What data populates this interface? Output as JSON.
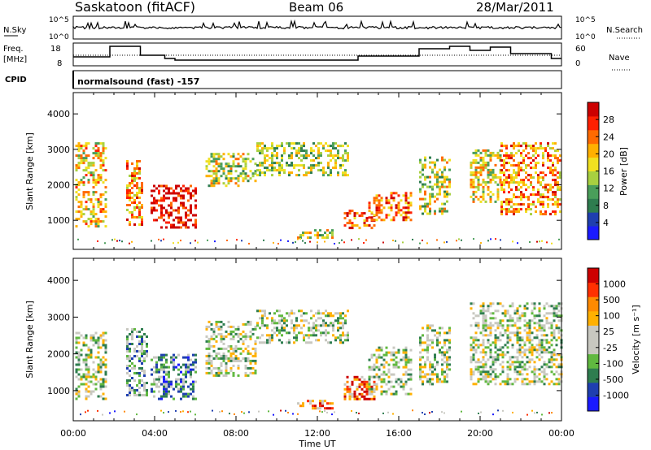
{
  "header": {
    "station": "Saskatoon (fitACF)",
    "beam": "Beam 06",
    "date": "28/Mar/2011"
  },
  "status_panels": {
    "nsky_label": "N.Sky",
    "nsky_ticks": [
      "10^5",
      "10^0"
    ],
    "nsearch_label": "N.Search",
    "nsearch_ticks": [
      "10^5",
      "10^0"
    ],
    "freq_label": "Freq.",
    "freq_unit": "[MHz]",
    "freq_ticks": [
      "18",
      "8"
    ],
    "nave_label": "Nave",
    "nave_ticks": [
      "60",
      "0"
    ],
    "cpid_label": "CPID",
    "cpid_value": "normalsound (fast) -157"
  },
  "colors": {
    "power_scale": [
      "#1a1aff",
      "#1f3fb0",
      "#2e7d4f",
      "#4a9e5a",
      "#a8d040",
      "#f0e020",
      "#ffb000",
      "#ff6a00",
      "#ff2000",
      "#cc0000"
    ],
    "velocity_scale": [
      "#1a1aff",
      "#1f3fb0",
      "#2e7d4f",
      "#60b840",
      "#c8c8c0",
      "#c8c8c0",
      "#ffb000",
      "#ff8a00",
      "#ff3000",
      "#cc0000"
    ]
  },
  "chart_data": [
    {
      "type": "heatmap",
      "title": "Power",
      "xlabel": "Time UT",
      "ylabel": "Slant Range [km]",
      "x_tick_labels": [
        "00:00",
        "04:00",
        "08:00",
        "12:00",
        "16:00",
        "20:00",
        "00:00"
      ],
      "xlim_hours": [
        0,
        24
      ],
      "ylim": [
        180,
        4600
      ],
      "y_ticks": [
        "4000",
        "3000",
        "2000",
        "1000"
      ],
      "colorbar_label": "Power [dB]",
      "colorbar_ticks": [
        "28",
        "24",
        "20",
        "16",
        "12",
        "8",
        "4"
      ],
      "scatter_regions_range_km": [
        {
          "t": [
            0.1,
            1.6
          ],
          "r": [
            800,
            3200
          ],
          "level": 0.6
        },
        {
          "t": [
            2.6,
            3.4
          ],
          "r": [
            900,
            2700
          ],
          "level": 0.7
        },
        {
          "t": [
            3.8,
            6.0
          ],
          "r": [
            800,
            2000
          ],
          "level": 0.95
        },
        {
          "t": [
            6.5,
            9.0
          ],
          "r": [
            2000,
            2900
          ],
          "level": 0.5
        },
        {
          "t": [
            9.0,
            13.5
          ],
          "r": [
            2300,
            3200
          ],
          "level": 0.45
        },
        {
          "t": [
            13.3,
            14.8
          ],
          "r": [
            800,
            1300
          ],
          "level": 0.8
        },
        {
          "t": [
            14.5,
            16.6
          ],
          "r": [
            1000,
            1800
          ],
          "level": 0.75
        },
        {
          "t": [
            11.0,
            12.8
          ],
          "r": [
            500,
            750
          ],
          "level": 0.5
        },
        {
          "t": [
            17.0,
            18.5
          ],
          "r": [
            1200,
            2800
          ],
          "level": 0.5
        },
        {
          "t": [
            19.5,
            21.0
          ],
          "r": [
            1500,
            3000
          ],
          "level": 0.55
        },
        {
          "t": [
            21.0,
            24.0
          ],
          "r": [
            1200,
            3200
          ],
          "level": 0.7
        }
      ]
    },
    {
      "type": "heatmap",
      "title": "Velocity",
      "xlabel": "Time UT",
      "ylabel": "Slant Range [km]",
      "x_tick_labels": [
        "00:00",
        "04:00",
        "08:00",
        "12:00",
        "16:00",
        "20:00",
        "00:00"
      ],
      "xlim_hours": [
        0,
        24
      ],
      "ylim": [
        180,
        4600
      ],
      "y_ticks": [
        "4000",
        "3000",
        "2000",
        "1000"
      ],
      "colorbar_label": "Velocity [m s⁻¹]",
      "colorbar_ticks": [
        "1000",
        "500",
        "100",
        "25",
        "-25",
        "-100",
        "-500",
        "-1000"
      ],
      "scatter_regions_range_km": [
        {
          "t": [
            0.1,
            1.6
          ],
          "r": [
            800,
            2600
          ],
          "level": 0.45
        },
        {
          "t": [
            2.6,
            3.6
          ],
          "r": [
            900,
            2700
          ],
          "level": 0.35
        },
        {
          "t": [
            3.8,
            6.0
          ],
          "r": [
            800,
            2000
          ],
          "level": 0.3
        },
        {
          "t": [
            6.5,
            9.0
          ],
          "r": [
            1400,
            2900
          ],
          "level": 0.45
        },
        {
          "t": [
            9.0,
            13.5
          ],
          "r": [
            2300,
            3200
          ],
          "level": 0.45
        },
        {
          "t": [
            13.3,
            14.8
          ],
          "r": [
            800,
            1400
          ],
          "level": 0.8
        },
        {
          "t": [
            11.0,
            12.8
          ],
          "r": [
            500,
            750
          ],
          "level": 0.75
        },
        {
          "t": [
            14.5,
            16.6
          ],
          "r": [
            900,
            2200
          ],
          "level": 0.45
        },
        {
          "t": [
            17.0,
            18.5
          ],
          "r": [
            1200,
            2800
          ],
          "level": 0.45
        },
        {
          "t": [
            19.5,
            24.0
          ],
          "r": [
            1200,
            3400
          ],
          "level": 0.45
        }
      ]
    }
  ]
}
